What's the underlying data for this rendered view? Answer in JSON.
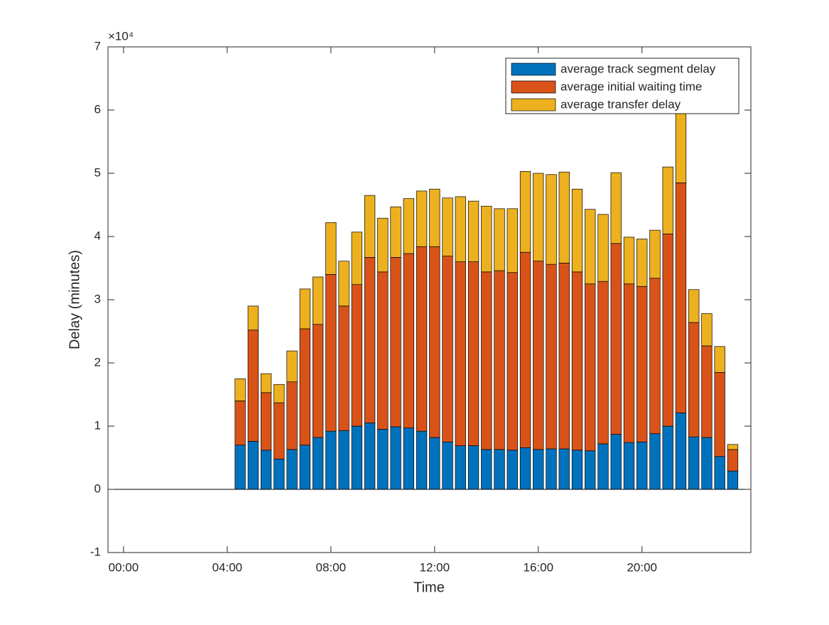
{
  "chart_data": {
    "type": "bar",
    "stacked": true,
    "xlabel": "Time",
    "ylabel": "Delay (minutes)",
    "y_scale_label": "×10⁴",
    "x": [
      4.5,
      5,
      5.5,
      6,
      6.5,
      7,
      7.5,
      8,
      8.5,
      9,
      9.5,
      10,
      10.5,
      11,
      11.5,
      12,
      12.5,
      13,
      13.5,
      14,
      14.5,
      15,
      15.5,
      16,
      16.5,
      17,
      17.5,
      18,
      18.5,
      19,
      19.5,
      20,
      20.5,
      21,
      21.5,
      22,
      22.5,
      23,
      23.5
    ],
    "series": [
      {
        "name": "average track segment delay",
        "color": "#0072bd",
        "values": [
          0.7,
          0.76,
          0.62,
          0.48,
          0.63,
          0.7,
          0.82,
          0.92,
          0.93,
          1.0,
          1.05,
          0.95,
          0.99,
          0.97,
          0.92,
          0.82,
          0.75,
          0.69,
          0.69,
          0.63,
          0.63,
          0.62,
          0.66,
          0.63,
          0.64,
          0.64,
          0.62,
          0.61,
          0.72,
          0.87,
          0.74,
          0.75,
          0.88,
          1.0,
          1.21,
          0.83,
          0.82,
          0.52,
          0.29
        ]
      },
      {
        "name": "average initial waiting time",
        "color": "#d95319",
        "values": [
          0.7,
          1.76,
          0.91,
          0.89,
          1.07,
          1.84,
          1.79,
          2.48,
          1.97,
          2.24,
          2.62,
          2.49,
          2.68,
          2.76,
          2.92,
          3.02,
          2.94,
          2.91,
          2.91,
          2.81,
          2.83,
          2.81,
          3.09,
          2.98,
          2.92,
          2.94,
          2.82,
          2.64,
          2.57,
          3.02,
          2.51,
          2.46,
          2.46,
          3.04,
          3.64,
          1.81,
          1.45,
          1.33,
          0.34
        ]
      },
      {
        "name": "average transfer delay",
        "color": "#edb120",
        "values": [
          0.35,
          0.38,
          0.3,
          0.29,
          0.49,
          0.63,
          0.75,
          0.82,
          0.71,
          0.83,
          0.98,
          0.85,
          0.8,
          0.87,
          0.88,
          0.91,
          0.92,
          1.03,
          0.96,
          1.04,
          0.98,
          1.01,
          1.28,
          1.39,
          1.42,
          1.44,
          1.31,
          1.18,
          1.06,
          1.12,
          0.74,
          0.75,
          0.76,
          1.06,
          1.15,
          0.52,
          0.51,
          0.41,
          0.08
        ]
      }
    ],
    "xlim": [
      -0.6,
      24.2
    ],
    "xticks": [
      {
        "value": 0,
        "label": "00:00"
      },
      {
        "value": 4,
        "label": "04:00"
      },
      {
        "value": 8,
        "label": "08:00"
      },
      {
        "value": 12,
        "label": "12:00"
      },
      {
        "value": 16,
        "label": "16:00"
      },
      {
        "value": 20,
        "label": "20:00"
      }
    ],
    "ylim": [
      -1,
      7
    ],
    "yticks": [
      -1,
      0,
      1,
      2,
      3,
      4,
      5,
      6,
      7
    ],
    "bar_width": 0.4,
    "legend": "upper right"
  }
}
